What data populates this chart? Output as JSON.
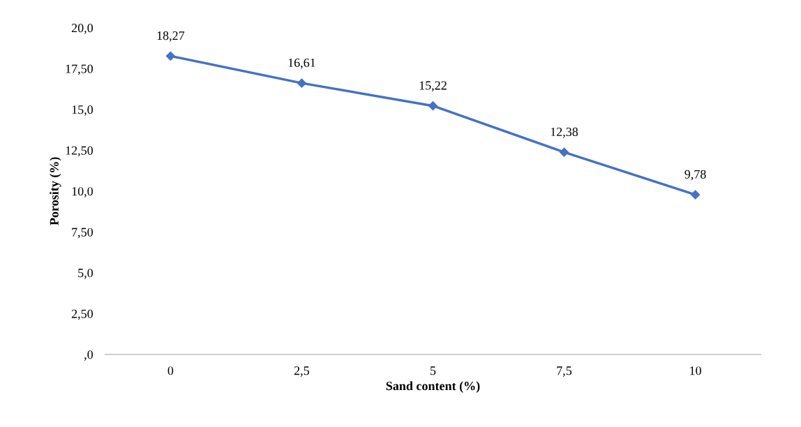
{
  "chart_data": {
    "type": "line",
    "xlabel": "Sand content (%)",
    "ylabel": "Porosity (%)",
    "categories": [
      "0",
      "2,5",
      "5",
      "7,5",
      "10"
    ],
    "series": [
      {
        "color": "#4472c4",
        "values": [
          18.27,
          16.61,
          15.22,
          12.38,
          9.78
        ],
        "value_labels": [
          "18,27",
          "16,61",
          "15,22",
          "12,38",
          "9,78"
        ]
      }
    ],
    "ylim": [
      0,
      20
    ],
    "yticks": [
      {
        "value": 0,
        "label": ",0"
      },
      {
        "value": 2.5,
        "label": "2,50"
      },
      {
        "value": 5,
        "label": "5,0"
      },
      {
        "value": 7.5,
        "label": "7,50"
      },
      {
        "value": 10,
        "label": "10,0"
      },
      {
        "value": 12.5,
        "label": "12,50"
      },
      {
        "value": 15,
        "label": "15,0"
      },
      {
        "value": 17.5,
        "label": "17,50"
      },
      {
        "value": 20,
        "label": "20,0"
      }
    ],
    "grid": false,
    "legend": false,
    "marker": "diamond",
    "line_style": "solid"
  }
}
